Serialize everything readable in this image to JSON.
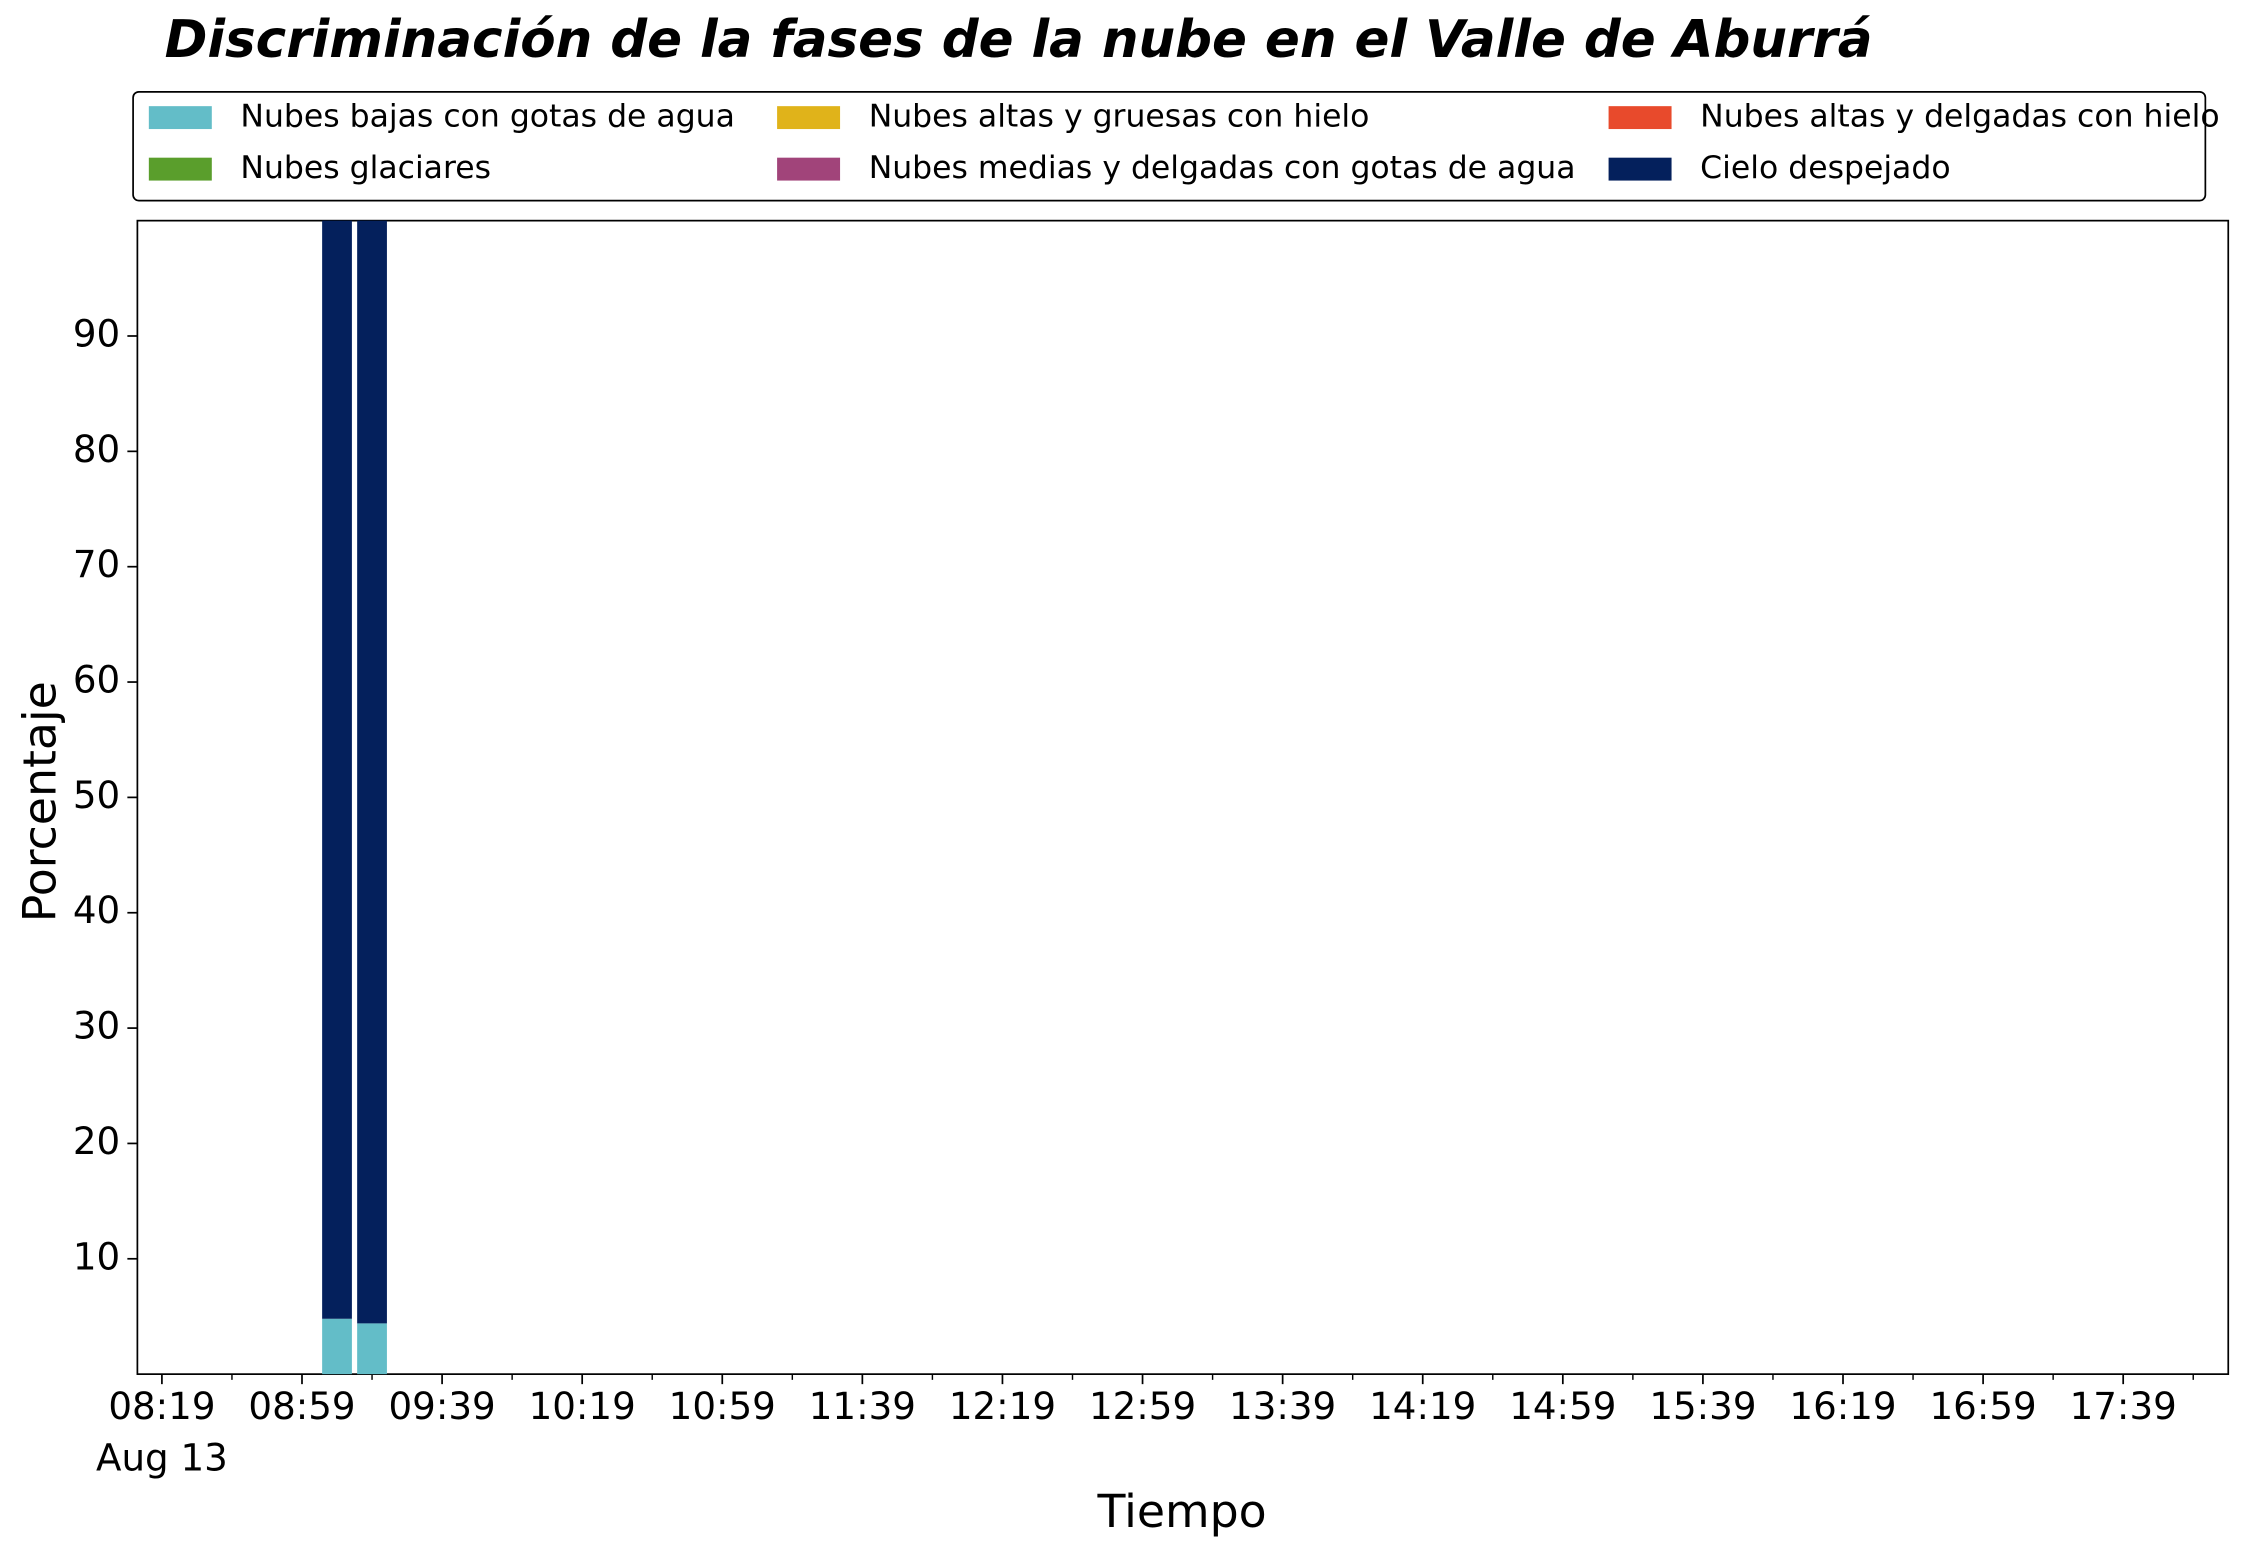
{
  "chart_data": {
    "type": "bar",
    "stacked": true,
    "title": "Discriminación de la fases de la nube en el Valle de Aburrá",
    "xlabel": "Tiempo",
    "ylabel": "Porcentaje",
    "x": [
      "09:09",
      "09:19"
    ],
    "xlim": [
      "08:12",
      "18:09"
    ],
    "xticks": [
      "08:19",
      "08:59",
      "09:39",
      "10:19",
      "10:59",
      "11:39",
      "12:19",
      "12:59",
      "13:39",
      "14:19",
      "14:59",
      "15:39",
      "16:19",
      "16:59",
      "17:39"
    ],
    "xminor_ticks": [
      "08:39",
      "09:19",
      "09:59",
      "10:39",
      "11:19",
      "11:59",
      "12:39",
      "13:19",
      "13:59",
      "14:39",
      "15:19",
      "15:59",
      "16:39",
      "17:19",
      "17:59"
    ],
    "date_label": "Aug 13",
    "ylim": [
      0,
      100
    ],
    "yticks": [
      10,
      20,
      30,
      40,
      50,
      60,
      70,
      80,
      90
    ],
    "grid": false,
    "legend": "top",
    "series": [
      {
        "name": "Nubes bajas con gotas de agua",
        "color": "#63bdc8",
        "values": [
          4.8,
          4.4
        ]
      },
      {
        "name": "Nubes glaciares",
        "color": "#5a9e2c",
        "values": [
          0,
          0
        ]
      },
      {
        "name": "Nubes altas y gruesas con hielo",
        "color": "#e0b31a",
        "values": [
          0,
          0
        ]
      },
      {
        "name": "Nubes medias y delgadas con gotas de agua",
        "color": "#a1447a",
        "values": [
          0,
          0
        ]
      },
      {
        "name": "Nubes altas y delgadas con hielo",
        "color": "#e84a2c",
        "values": [
          0,
          0
        ]
      },
      {
        "name": "Cielo despejado",
        "color": "#04205c",
        "values": [
          95.2,
          95.6
        ]
      }
    ]
  }
}
